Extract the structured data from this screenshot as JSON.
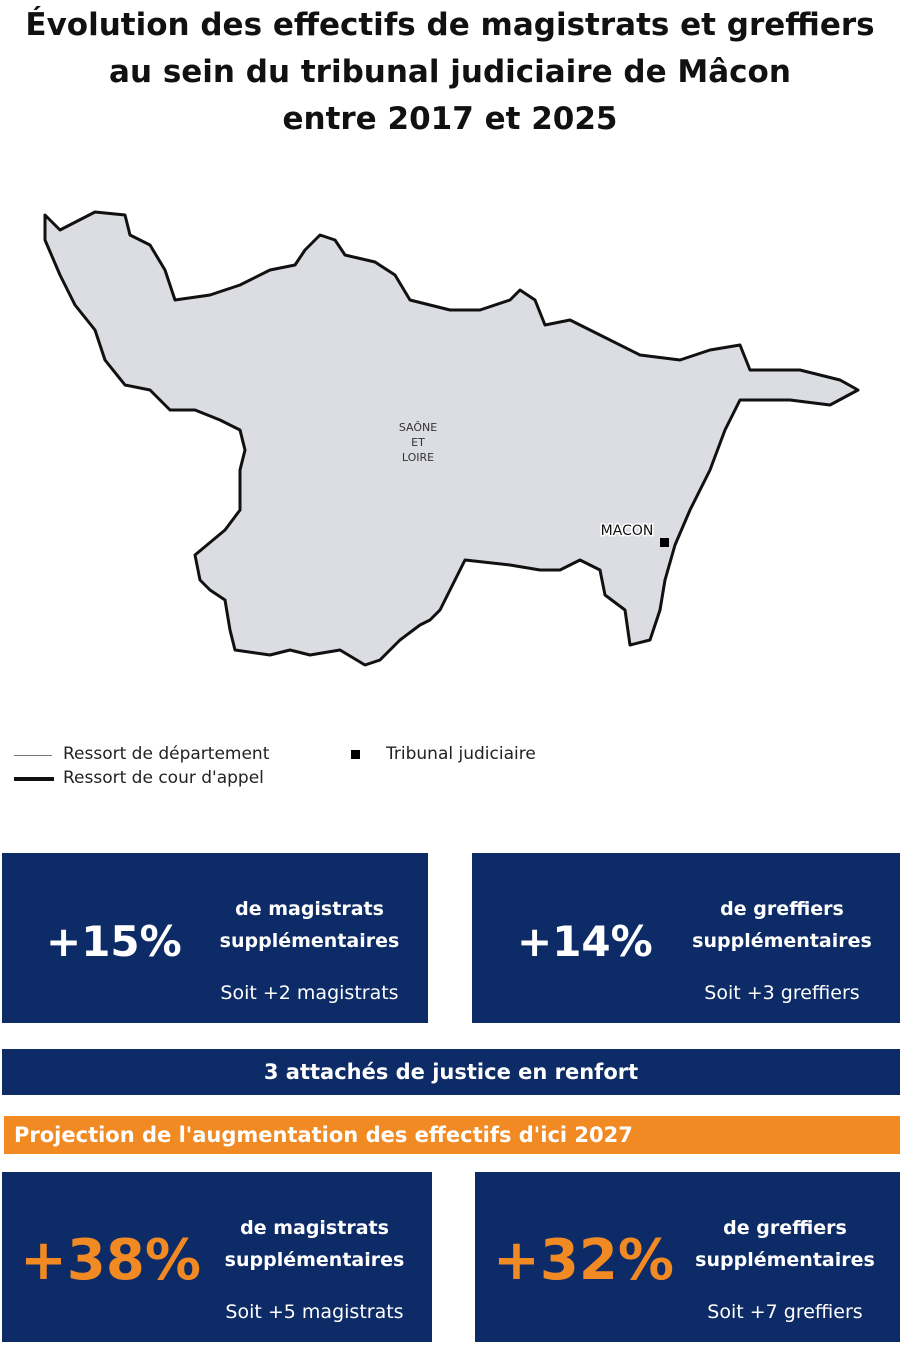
{
  "title_lines": [
    "Évolution des effectifs de magistrats et greffiers",
    "au sein du tribunal judiciaire de Mâcon",
    "entre 2017 et 2025"
  ],
  "map": {
    "department_label": [
      "SAÔNE",
      "ET",
      "LOIRE"
    ],
    "city_label": "MACON",
    "fill_color": "#dcdde2",
    "border_color": "#111111"
  },
  "legend": {
    "department": "Ressort de département",
    "court": "Ressort de cour d'appel",
    "tribunal": "Tribunal judiciaire"
  },
  "colors": {
    "navy": "#0d2b66",
    "orange": "#f28a24"
  },
  "stats_2025": [
    {
      "value": "+15%",
      "line1": "de magistrats",
      "line2": "supplémentaires",
      "detail": "Soit +2 magistrats"
    },
    {
      "value": "+14%",
      "line1": "de greffiers",
      "line2": "supplémentaires",
      "detail": "Soit +3 greffiers"
    }
  ],
  "banner": "3 attachés de justice en renfort",
  "projection_title": "Projection de l'augmentation des effectifs d'ici 2027",
  "stats_2027": [
    {
      "value": "+38%",
      "line1": "de magistrats",
      "line2": "supplémentaires",
      "detail": "Soit +5 magistrats"
    },
    {
      "value": "+32%",
      "line1": "de greffiers",
      "line2": "supplémentaires",
      "detail": "Soit +7 greffiers"
    }
  ]
}
